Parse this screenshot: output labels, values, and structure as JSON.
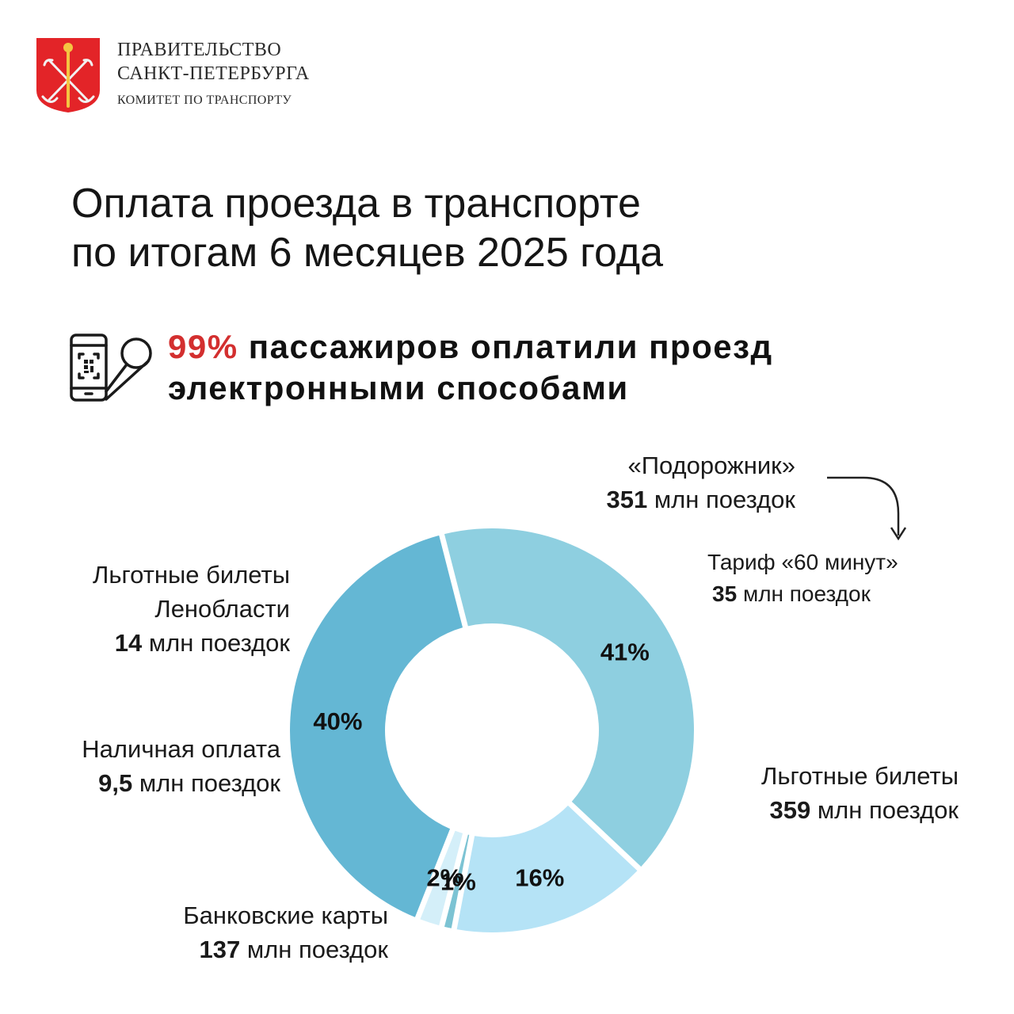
{
  "header": {
    "org_line1": "ПРАВИТЕЛЬСТВО",
    "org_line2": "САНКТ-ПЕТЕРБУРГА",
    "org_line3": "КОМИТЕТ ПО ТРАНСПОРТУ",
    "emblem_color": "#e32428",
    "emblem_icon": "coat-of-arms-icon"
  },
  "title_line1": "Оплата проезда в транспорте",
  "title_line2": "по итогам 6 месяцев 2025 года",
  "headline": {
    "icon": "phone-qr-icon",
    "percent": "99%",
    "line1_rest": "пассажиров оплатили проезд",
    "line2": "электронными способами",
    "accent_color": "#d32f2f"
  },
  "labels": {
    "podorozhnik": {
      "name": "«Подорожник»",
      "num": "351",
      "unit": "млн поездок"
    },
    "tariff60": {
      "name": "Тариф «60 минут»",
      "num": "35",
      "unit": "млн поездок"
    },
    "lgotnye_len": {
      "name1": "Льготные билеты",
      "name2": "Ленобласти",
      "num": "14",
      "unit": "млн поездок"
    },
    "cash": {
      "name": "Наличная оплата",
      "num": "9,5",
      "unit": "млн поездок"
    },
    "bank": {
      "name": "Банковские карты",
      "num": "137",
      "unit": "млн поездок"
    },
    "lgotnye": {
      "name": "Льготные билеты",
      "num": "359",
      "unit": "млн поездок"
    }
  },
  "chart_data": {
    "type": "pie",
    "variant": "donut",
    "unit": "%",
    "slices": [
      {
        "key": "podorozhnik",
        "label": "40%",
        "value": 40,
        "color": "#64b7d4",
        "trips_mln": 351
      },
      {
        "key": "lgotnye",
        "label": "41%",
        "value": 41,
        "color": "#8ecfe0",
        "trips_mln": 359
      },
      {
        "key": "bank",
        "label": "16%",
        "value": 16,
        "color": "#b5e3f6",
        "trips_mln": 137
      },
      {
        "key": "cash",
        "label": "1%",
        "value": 1,
        "color": "#7cc3d3",
        "trips_mln": 9.5
      },
      {
        "key": "lgotnye_len",
        "label": "2%",
        "value": 2,
        "color": "#d4eff9",
        "trips_mln": 14
      }
    ]
  }
}
